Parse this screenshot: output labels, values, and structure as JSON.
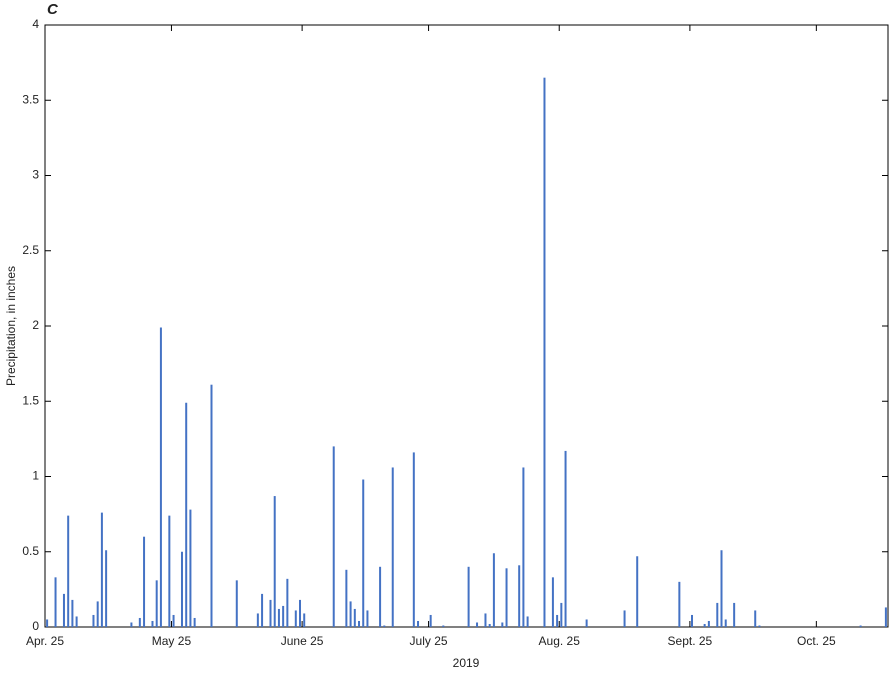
{
  "chart_data": {
    "type": "bar",
    "panel_label": "C",
    "x_label": "2019",
    "y_label": "Precipitation, in inches",
    "color": "#4472c4",
    "x": [
      "2019-04-25",
      "2019-04-27",
      "2019-04-29",
      "2019-04-30",
      "2019-05-01",
      "2019-05-02",
      "2019-05-06",
      "2019-05-07",
      "2019-05-08",
      "2019-05-09",
      "2019-05-15",
      "2019-05-17",
      "2019-05-18",
      "2019-05-20",
      "2019-05-21",
      "2019-05-22",
      "2019-05-24",
      "2019-05-25",
      "2019-05-27",
      "2019-05-28",
      "2019-05-29",
      "2019-05-30",
      "2019-06-03",
      "2019-06-09",
      "2019-06-14",
      "2019-06-15",
      "2019-06-17",
      "2019-06-18",
      "2019-06-19",
      "2019-06-20",
      "2019-06-21",
      "2019-06-23",
      "2019-06-24",
      "2019-06-25",
      "2019-07-02",
      "2019-07-05",
      "2019-07-06",
      "2019-07-07",
      "2019-07-08",
      "2019-07-09",
      "2019-07-10",
      "2019-07-13",
      "2019-07-14",
      "2019-07-16",
      "2019-07-21",
      "2019-07-22",
      "2019-07-25",
      "2019-07-28",
      "2019-08-03",
      "2019-08-05",
      "2019-08-07",
      "2019-08-08",
      "2019-08-09",
      "2019-08-11",
      "2019-08-12",
      "2019-08-15",
      "2019-08-16",
      "2019-08-17",
      "2019-08-21",
      "2019-08-23",
      "2019-08-24",
      "2019-08-25",
      "2019-08-26",
      "2019-08-31",
      "2019-09-09",
      "2019-09-12",
      "2019-09-22",
      "2019-09-25",
      "2019-09-28",
      "2019-09-29",
      "2019-10-01",
      "2019-10-02",
      "2019-10-03",
      "2019-10-05",
      "2019-10-10",
      "2019-10-11",
      "2019-11-04",
      "2019-11-10"
    ],
    "values": [
      0.05,
      0.33,
      0.22,
      0.74,
      0.18,
      0.07,
      0.08,
      0.17,
      0.76,
      0.51,
      0.03,
      0.06,
      0.6,
      0.04,
      0.31,
      1.99,
      0.74,
      0.08,
      0.5,
      1.49,
      0.78,
      0.06,
      1.61,
      0.31,
      0.09,
      0.22,
      0.18,
      0.87,
      0.12,
      0.14,
      0.32,
      0.11,
      0.18,
      0.09,
      1.2,
      0.38,
      0.17,
      0.12,
      0.04,
      0.98,
      0.11,
      0.4,
      0.01,
      1.06,
      1.16,
      0.04,
      0.08,
      0.01,
      0.4,
      0.03,
      0.09,
      0.02,
      0.49,
      0.03,
      0.39,
      0.41,
      1.06,
      0.07,
      3.65,
      0.33,
      0.08,
      0.16,
      1.17,
      0.05,
      0.11,
      0.47,
      0.3,
      0.08,
      0.02,
      0.04,
      0.16,
      0.51,
      0.05,
      0.16,
      0.11,
      0.01,
      0.01,
      0.13
    ],
    "xlim": [
      "2019-04-25",
      "2019-11-11"
    ],
    "xticks": [
      {
        "value": "2019-04-25",
        "label": "Apr. 25"
      },
      {
        "value": "2019-05-25",
        "label": "May 25"
      },
      {
        "value": "2019-06-25",
        "label": "June 25"
      },
      {
        "value": "2019-07-25",
        "label": "July 25"
      },
      {
        "value": "2019-08-25",
        "label": "Aug. 25"
      },
      {
        "value": "2019-09-25",
        "label": "Sept. 25"
      },
      {
        "value": "2019-10-25",
        "label": "Oct. 25"
      }
    ],
    "ylim": [
      0,
      4
    ],
    "yticks": [
      0,
      0.5,
      1,
      1.5,
      2,
      2.5,
      3,
      3.5,
      4
    ],
    "grid": false
  }
}
